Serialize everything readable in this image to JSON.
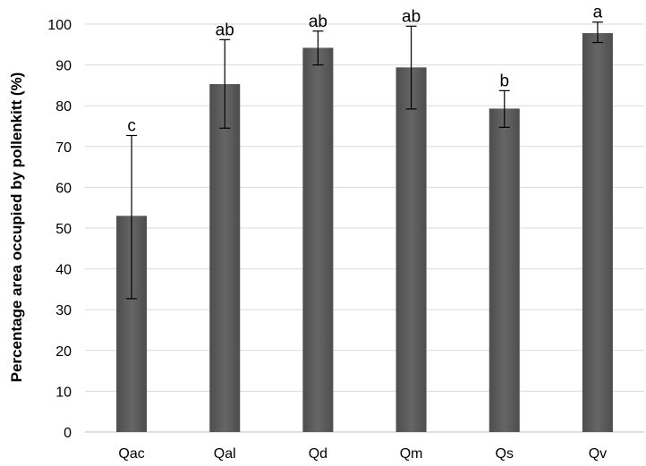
{
  "chart_data": {
    "type": "bar",
    "ylabel": "Percentage area occupied by pollenkitt (%)",
    "ylim": [
      0,
      100
    ],
    "yticks": [
      0,
      10,
      20,
      30,
      40,
      50,
      60,
      70,
      80,
      90,
      100
    ],
    "grid": true,
    "legend": "none",
    "categories": [
      "Qac",
      "Qal",
      "Qd",
      "Qm",
      "Qs",
      "Qv"
    ],
    "values": [
      53,
      85.3,
      94.2,
      89.4,
      79.3,
      97.8
    ],
    "error_low": [
      32.7,
      74.5,
      90.0,
      79.2,
      74.7,
      95.5
    ],
    "error_high": [
      72.7,
      96.2,
      98.3,
      99.5,
      83.7,
      100.5
    ],
    "significance_labels": [
      "c",
      "ab",
      "ab",
      "ab",
      "b",
      "a"
    ],
    "bar_color": "#595959"
  }
}
